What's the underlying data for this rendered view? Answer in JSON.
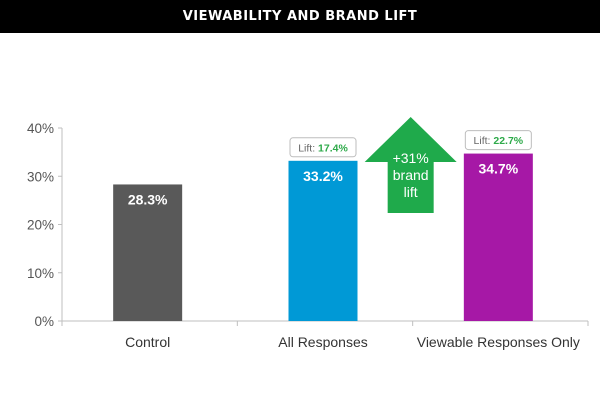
{
  "header": {
    "title": "VIEWABILITY AND BRAND LIFT"
  },
  "chart_data": {
    "type": "bar",
    "categories": [
      "Control",
      "All  Responses",
      "Viewable Responses Only"
    ],
    "values": [
      28.3,
      33.2,
      34.7
    ],
    "value_labels": [
      "28.3%",
      "33.2%",
      "34.7%"
    ],
    "bar_colors": [
      "#595959",
      "#0099d6",
      "#a618a6"
    ],
    "ylim": [
      0,
      40
    ],
    "yticks": [
      0,
      10,
      20,
      30,
      40
    ],
    "ytick_labels": [
      "0%",
      "10%",
      "20%",
      "30%",
      "40%"
    ],
    "title": "",
    "xlabel": "",
    "ylabel": "",
    "grid": false,
    "legend": "none",
    "annotations": {
      "lift_all": {
        "prefix": "Lift: ",
        "value": "17.4%",
        "category_index": 1
      },
      "lift_viewable": {
        "prefix": "Lift: ",
        "value": "22.7%",
        "category_index": 2
      },
      "arrow": {
        "lines": [
          "+31%",
          "brand",
          "lift"
        ],
        "color": "#1faa4b"
      }
    },
    "lift_value_color": "#2eaa4a"
  }
}
